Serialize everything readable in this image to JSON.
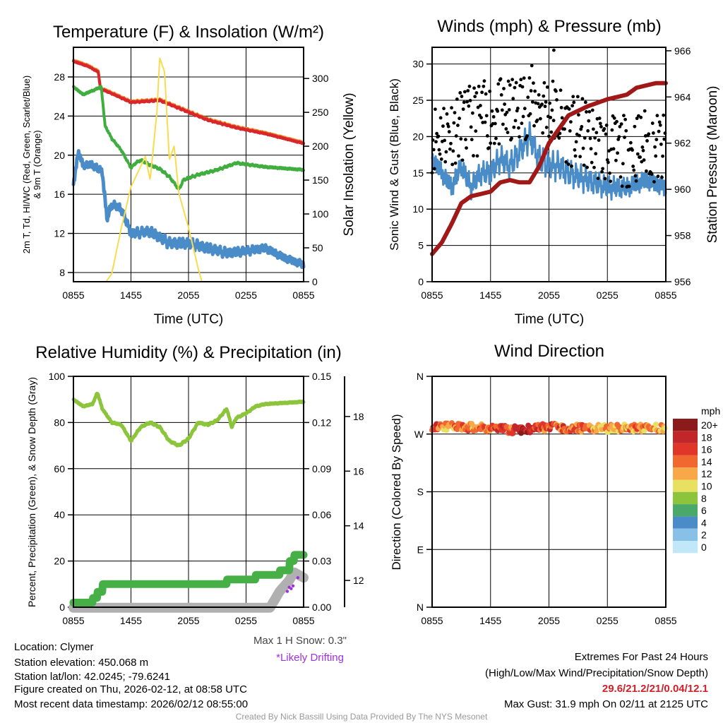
{
  "info": {
    "location": "Location: Clymer",
    "elevation": "Station elevation: 450.068 m",
    "latlon": "Station lat/lon: 42.0245; -79.6241",
    "created": "Figure created on Thu, 2026-02-12, at 08:58 UTC",
    "recent": "Most recent data timestamp: 2026/02/12 08:55:00",
    "snow_max": "Max 1 H Snow: 0.3\"",
    "drifting": "*Likely Drifting",
    "extremes_title": "Extremes For Past 24 Hours",
    "extremes_sub": "(High/Low/Max Wind/Precipitation/Snow Depth)",
    "extremes_values": "29.6/21.2/21/0.04/12.1",
    "max_gust": "Max Gust: 31.9 mph On 02/11 at 2125 UTC",
    "credit": "Created By Nick Bassill Using Data Provided By The NYS Mesonet"
  },
  "chart_data": [
    {
      "type": "line",
      "title": "Temperature (F) & Insolation (W/m²)",
      "xlabel": "Time (UTC)",
      "ylabel": "2m T, Td, HI/WC (Red, Green, Scarlet/Blue)",
      "ylabel2": "& 9m T (Orange)",
      "y2label": "Solar Insolation (Yellow)",
      "xticks": [
        "0855",
        "1455",
        "2055",
        "0255",
        "0855"
      ],
      "xlim_hours": [
        0,
        24
      ],
      "yticks": [
        "8",
        "12",
        "16",
        "20",
        "24",
        "28"
      ],
      "ylim": [
        7.06,
        31.03
      ],
      "y2ticks": [
        "0",
        "50",
        "100",
        "150",
        "200",
        "250",
        "300"
      ],
      "y2lim": [
        0,
        346
      ],
      "series": [
        {
          "name": "9m T",
          "color": "#f08a30",
          "axis": "left",
          "x": [
            0,
            1.5,
            2.6,
            2.8,
            4,
            6,
            9,
            11,
            14,
            17,
            20,
            24
          ],
          "y": [
            29.7,
            29.2,
            28.6,
            26.9,
            26.4,
            25.5,
            25.7,
            24.9,
            23.7,
            22.9,
            22.3,
            21.3
          ]
        },
        {
          "name": "2m T",
          "color": "#d9262a",
          "axis": "left",
          "x": [
            0,
            1.5,
            2.6,
            2.8,
            4,
            6,
            9,
            11,
            14,
            17,
            20,
            24
          ],
          "y": [
            29.6,
            29.1,
            28.5,
            26.8,
            26.3,
            25.4,
            25.6,
            24.8,
            23.6,
            22.8,
            22.2,
            21.2
          ]
        },
        {
          "name": "Td",
          "color": "#3fae3f",
          "axis": "left",
          "x": [
            0,
            1,
            2,
            2.9,
            3.3,
            4,
            5,
            6,
            6.5,
            7,
            8,
            9,
            10,
            11,
            11.5,
            13,
            15,
            17,
            20,
            24
          ],
          "y": [
            27,
            26.2,
            26.6,
            27,
            23,
            21.7,
            20.5,
            18.7,
            19.2,
            19.5,
            19.0,
            18.6,
            17.8,
            16.5,
            17.5,
            18.0,
            18.5,
            19.2,
            18.8,
            18.5
          ]
        },
        {
          "name": "Wind Chill",
          "color": "#4a8cc8",
          "axis": "left",
          "x": [
            0,
            0.5,
            1,
            2,
            3,
            3.5,
            4,
            5,
            6,
            8,
            10,
            12,
            14,
            16,
            18,
            20,
            22,
            24
          ],
          "y": [
            17,
            20.3,
            19,
            19,
            18.3,
            13.5,
            15,
            14.5,
            12,
            12.2,
            11,
            11,
            10.5,
            10,
            10.2,
            10.5,
            9.5,
            8.8
          ]
        },
        {
          "name": "Solar Insolation",
          "color": "#f8dc50",
          "axis": "right",
          "x": [
            0,
            3.4,
            4,
            5,
            6,
            7,
            7.5,
            8,
            8.7,
            9,
            9.5,
            10,
            10.5,
            11,
            12,
            13,
            13.4,
            24
          ],
          "y": [
            0,
            0,
            12,
            80,
            140,
            170,
            185,
            150,
            250,
            330,
            310,
            180,
            200,
            130,
            80,
            20,
            0,
            0
          ]
        }
      ]
    },
    {
      "type": "line",
      "title": "Winds (mph) & Pressure (mb)",
      "xlabel": "Time (UTC)",
      "ylabel": "Sonic Wind & Gust (Blue, Black)",
      "y2label": "Station Pressure (Maroon)",
      "xticks": [
        "0855",
        "1455",
        "2055",
        "0255",
        "0855"
      ],
      "xlim_hours": [
        0,
        24
      ],
      "yticks": [
        "0",
        "5",
        "10",
        "15",
        "20",
        "25",
        "30"
      ],
      "ylim": [
        0,
        32.3
      ],
      "y2ticks": [
        "956",
        "958",
        "960",
        "962",
        "964",
        "966"
      ],
      "y2lim": [
        956,
        966.15
      ],
      "series": [
        {
          "name": "Sonic Wind",
          "color": "#4a8cc8",
          "axis": "left",
          "x": [
            0,
            1,
            2,
            3,
            4,
            5,
            6,
            7,
            8,
            9,
            10,
            11,
            12,
            13,
            14,
            16,
            18,
            20,
            22,
            24
          ],
          "y": [
            17,
            15,
            13,
            16,
            13,
            15,
            15,
            17,
            16,
            18,
            20,
            17,
            16,
            16,
            15,
            14,
            13,
            13,
            14,
            13
          ]
        },
        {
          "name": "Gust (mean)",
          "color": "#000000",
          "axis": "left",
          "type": "scatter",
          "x": [
            0,
            2,
            4,
            6,
            8,
            10,
            12,
            14,
            16,
            18,
            20,
            22,
            24
          ],
          "y": [
            20,
            21,
            22,
            23,
            23,
            25,
            24,
            21,
            20,
            18,
            18,
            19,
            18
          ]
        },
        {
          "name": "Station Pressure",
          "color": "#a01818",
          "axis": "right",
          "x": [
            0,
            1,
            2,
            3,
            4,
            6,
            7,
            8,
            9,
            10,
            11,
            12,
            13,
            14,
            16,
            18,
            20,
            21,
            23,
            24
          ],
          "y": [
            957.2,
            957.7,
            958.5,
            959.4,
            959.7,
            959.9,
            960.3,
            960.4,
            960.3,
            960.3,
            961,
            962,
            962.6,
            963.2,
            963.6,
            963.9,
            964.1,
            964.4,
            964.6,
            964.6
          ]
        }
      ],
      "max_gust": {
        "x": 12.5,
        "y": 31.9
      }
    },
    {
      "type": "line",
      "title": "Relative Humidity (%) & Precipitation (in)",
      "ylabel": "Percent, Precipitation (Green), & Snow Depth (Gray)",
      "xticks": [
        "0855",
        "1455",
        "2055",
        "0255",
        "0855"
      ],
      "xlim_hours": [
        0,
        24
      ],
      "yticks": [
        "0",
        "20",
        "40",
        "60",
        "80",
        "100"
      ],
      "ylim": [
        0,
        100
      ],
      "y2ticks": [
        "0.00",
        "0.03",
        "0.06",
        "0.09",
        "0.12",
        "0.15"
      ],
      "y2lim": [
        0,
        0.15
      ],
      "y3ticks": [
        "12",
        "14",
        "16",
        "18"
      ],
      "y3lim": [
        11.02,
        19.47
      ],
      "series": [
        {
          "name": "Snow Depth",
          "color": "#b0b0b0",
          "axis": "y3",
          "x": [
            0,
            20.5,
            21.5,
            22.5,
            23,
            24
          ],
          "y": [
            11.0,
            11.0,
            11.6,
            12.0,
            12.3,
            12.1
          ]
        },
        {
          "name": "Precipitation",
          "color": "#46b046",
          "axis": "y2",
          "step": true,
          "x": [
            0,
            1,
            2,
            2.5,
            3,
            12,
            15.5,
            16,
            18,
            19,
            20,
            21.5,
            22.5,
            23,
            24
          ],
          "y": [
            0.003,
            0.003,
            0.006,
            0.01,
            0.015,
            0.015,
            0.015,
            0.018,
            0.018,
            0.021,
            0.021,
            0.024,
            0.03,
            0.034,
            0.036
          ]
        },
        {
          "name": "Relative Humidity",
          "color": "#8cc43c",
          "axis": "left",
          "x": [
            0,
            1,
            2,
            2.5,
            3,
            4,
            5,
            6,
            7,
            8,
            9,
            10,
            11,
            12,
            13,
            14,
            15,
            16,
            16.5,
            17,
            18,
            19,
            20,
            24
          ],
          "y": [
            90,
            87,
            88,
            93,
            86,
            80,
            79,
            72,
            78,
            80,
            78,
            72,
            70,
            73,
            80,
            79,
            81,
            86,
            78,
            82,
            84,
            87,
            88,
            89
          ]
        },
        {
          "name": "Likely Drifting",
          "color": "#a030e0",
          "axis": "y3",
          "type": "scatter",
          "x": [
            22.3,
            22.5,
            22.7,
            22.9,
            23.4
          ],
          "y": [
            11.6,
            11.75,
            11.7,
            11.8,
            12.1
          ]
        }
      ]
    },
    {
      "type": "scatter",
      "title": "Wind Direction",
      "ylabel": "Direction (Colored By Speed)",
      "xticks": [
        "0855",
        "1455",
        "2055",
        "0255",
        "0855"
      ],
      "xlim_hours": [
        0,
        24
      ],
      "yticks": [
        "N",
        "E",
        "S",
        "W",
        "N"
      ],
      "ylim": [
        0,
        360
      ],
      "direction_mean": {
        "x": [
          0,
          3,
          6,
          9,
          12,
          15,
          18,
          21,
          24
        ],
        "y": [
          282,
          281,
          279,
          276,
          281,
          279,
          279,
          279,
          280
        ]
      },
      "colorbar": {
        "title": "mph",
        "labels": [
          "20+",
          "18",
          "16",
          "14",
          "12",
          "10",
          "8",
          "6",
          "4",
          "2",
          "0"
        ],
        "colors": [
          "#8b1a1a",
          "#c0262a",
          "#e0362a",
          "#f06830",
          "#f8a848",
          "#e8e060",
          "#8cc43c",
          "#4aa868",
          "#4a8cc8",
          "#88c0e8",
          "#c0e8f8"
        ]
      }
    }
  ]
}
